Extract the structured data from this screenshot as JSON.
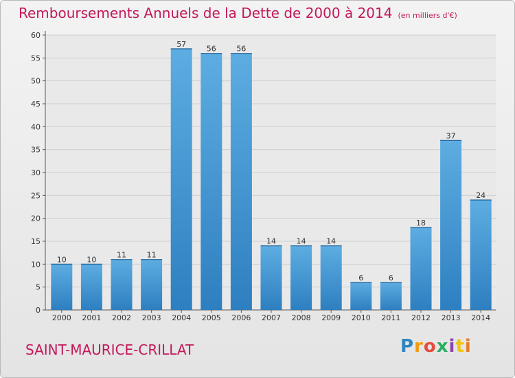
{
  "title": "Remboursements Annuels de la Dette de 2000 à 2014",
  "unit_note": "(en milliers d'€)",
  "commune": "SAINT-MAURICE-CRILLAT",
  "logo": {
    "letters": [
      "P",
      "r",
      "o",
      "x",
      "i",
      "t",
      "i"
    ],
    "colors": [
      "#2e86c1",
      "#f39c12",
      "#e74c3c",
      "#27ae60",
      "#8e44ad",
      "#f1c40f",
      "#e67e22"
    ]
  },
  "colors": {
    "bar_top": "#5dade2",
    "bar_bottom": "#2e7fc0",
    "title": "#c2185b"
  },
  "chart_data": {
    "type": "bar",
    "title": "Remboursements Annuels de la Dette de 2000 à 2014",
    "xlabel": "",
    "ylabel": "",
    "categories": [
      "2000",
      "2001",
      "2002",
      "2003",
      "2004",
      "2005",
      "2006",
      "2007",
      "2008",
      "2009",
      "2010",
      "2011",
      "2012",
      "2013",
      "2014"
    ],
    "values": [
      10,
      10,
      11,
      11,
      57,
      56,
      56,
      14,
      14,
      14,
      6,
      6,
      18,
      37,
      24
    ],
    "ylim": [
      0,
      60
    ],
    "yticks": [
      0,
      5,
      10,
      15,
      20,
      25,
      30,
      35,
      40,
      45,
      50,
      55,
      60
    ],
    "grid": true,
    "data_labels": true
  }
}
